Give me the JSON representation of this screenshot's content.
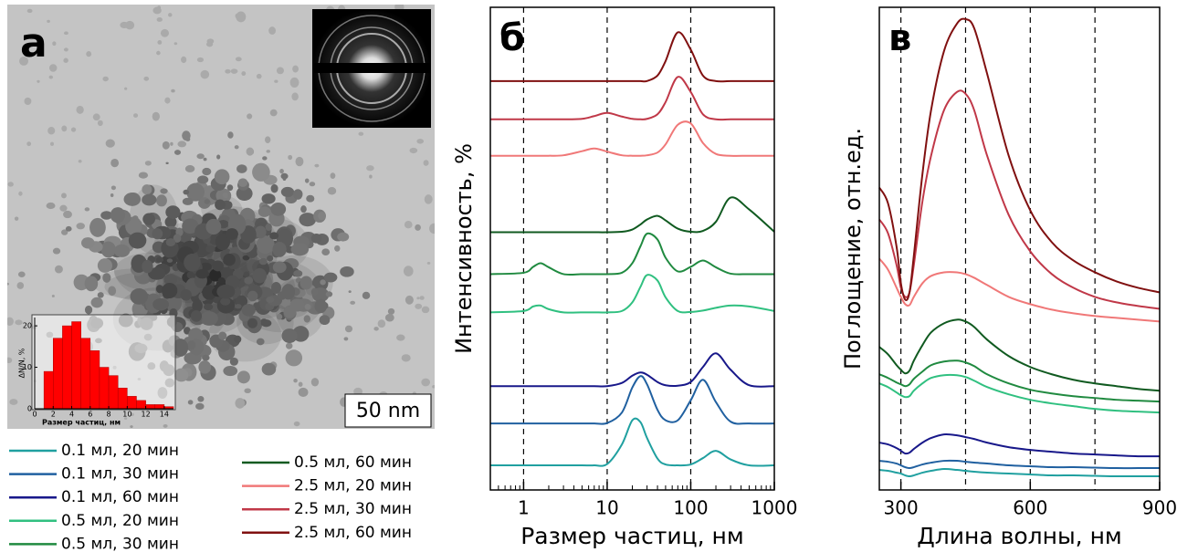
{
  "image": {
    "label": "а",
    "scale_bar": "50 nm"
  },
  "chart_data": [
    {
      "type": "histogram",
      "xlabel": "Размер частиц, нм",
      "ylabel": "ΔN/N, %",
      "bins": [
        1,
        2,
        3,
        4,
        5,
        6,
        7,
        8,
        9,
        10,
        11,
        12,
        13,
        14,
        15
      ],
      "values": [
        9,
        17,
        20,
        21,
        17,
        14,
        10,
        8,
        5,
        3,
        2,
        1,
        1,
        0.5
      ],
      "color": "#ff0000",
      "xlim": [
        0,
        15
      ],
      "ylim": [
        0,
        22
      ],
      "xticks": [
        0,
        2,
        4,
        6,
        8,
        10,
        12,
        14
      ],
      "yticks": [
        0,
        10,
        20
      ]
    },
    {
      "type": "line",
      "title": "б",
      "xlabel": "Размер частиц, нм",
      "ylabel": "Интенсивность, %",
      "log_x": true,
      "xlim": [
        0.4,
        1000
      ],
      "ylim": [
        0,
        106
      ],
      "xticks": [
        1,
        10,
        100,
        1000
      ],
      "reference_lines": [
        1,
        10,
        100
      ],
      "x": [
        0.4,
        1,
        1.3,
        1.6,
        2,
        3,
        5,
        7,
        10,
        15,
        20,
        25,
        30,
        40,
        50,
        70,
        100,
        140,
        200,
        300,
        500,
        1000
      ],
      "series": [
        {
          "name": "0.1 мл, 20 мин",
          "color": "#20a0a0",
          "values": [
            5.4,
            5.4,
            5.4,
            5.4,
            5.4,
            5.4,
            5.4,
            5.4,
            5.7,
            10.0,
            15.3,
            14.9,
            11.4,
            6.9,
            5.6,
            5.4,
            5.6,
            7.0,
            8.6,
            6.7,
            5.4,
            5.4
          ]
        },
        {
          "name": "0.1 мл, 30 мин",
          "color": "#2060a0",
          "values": [
            14.6,
            14.6,
            14.6,
            14.6,
            14.6,
            14.6,
            14.6,
            14.6,
            14.7,
            17.0,
            22.5,
            25.0,
            23.2,
            17.6,
            15.3,
            15.3,
            19.7,
            24.2,
            19.3,
            15.0,
            14.6,
            14.6
          ]
        },
        {
          "name": "0.1 мл, 60 мин",
          "color": "#18188a",
          "values": [
            22.8,
            22.8,
            22.8,
            22.8,
            22.8,
            22.8,
            22.8,
            22.8,
            22.8,
            23.5,
            25.1,
            25.8,
            25.3,
            23.7,
            23.0,
            22.9,
            23.7,
            27.0,
            30.0,
            26.4,
            23.0,
            22.8
          ]
        },
        {
          "name": "0.5 мл, 20 мин",
          "color": "#30c080",
          "values": [
            39.0,
            39.3,
            40.3,
            40.5,
            39.7,
            39.0,
            39.0,
            39.0,
            39.0,
            39.3,
            41.2,
            44.6,
            47.2,
            46.0,
            42.3,
            39.3,
            39.1,
            39.4,
            40.0,
            40.5,
            40.3,
            39.3
          ]
        },
        {
          "name": "0.5 мл, 30 мин",
          "color": "#208a40",
          "values": [
            47.4,
            47.7,
            49.0,
            49.8,
            48.9,
            47.4,
            47.4,
            47.4,
            47.4,
            47.7,
            49.8,
            53.5,
            56.3,
            55.0,
            51.0,
            48.0,
            49.0,
            50.4,
            48.9,
            47.5,
            47.4,
            47.4
          ]
        },
        {
          "name": "0.5 мл, 60 мин",
          "color": "#105a20",
          "values": [
            56.6,
            56.6,
            56.6,
            56.6,
            56.6,
            56.6,
            56.6,
            56.6,
            56.6,
            56.7,
            57.2,
            58.3,
            59.4,
            60.2,
            59.2,
            57.4,
            56.7,
            56.9,
            58.9,
            64.2,
            61.6,
            56.7
          ]
        },
        {
          "name": "2.5 мл, 20 мин",
          "color": "#f07878",
          "values": [
            73.4,
            73.4,
            73.4,
            73.4,
            73.4,
            73.5,
            74.4,
            75.0,
            74.3,
            73.5,
            73.4,
            73.4,
            73.5,
            74.1,
            75.9,
            80.2,
            80.5,
            76.2,
            73.8,
            73.4,
            73.4,
            73.4
          ]
        },
        {
          "name": "2.5 мл, 30 мин",
          "color": "#c03848",
          "values": [
            81.4,
            81.4,
            81.4,
            81.4,
            81.4,
            81.4,
            81.5,
            82.1,
            82.8,
            82.0,
            81.5,
            81.4,
            81.5,
            82.5,
            85.2,
            90.7,
            87.4,
            82.5,
            81.4,
            81.4,
            81.4,
            81.4
          ]
        },
        {
          "name": "2.5 мл, 60 мин",
          "color": "#801010",
          "values": [
            89.8,
            89.8,
            89.8,
            89.8,
            89.8,
            89.8,
            89.8,
            89.8,
            89.8,
            89.8,
            89.8,
            89.8,
            89.8,
            91.0,
            94.2,
            100.5,
            96.7,
            91.0,
            89.8,
            89.8,
            89.8,
            89.8
          ]
        }
      ]
    },
    {
      "type": "line",
      "title": "в",
      "xlabel": "Длина волны, нм",
      "ylabel": "Поглощение, отн.ед.",
      "xlim": [
        250,
        900
      ],
      "ylim": [
        0,
        106
      ],
      "xticks": [
        300,
        600,
        900
      ],
      "reference_lines": [
        300,
        450,
        600,
        750
      ],
      "x": [
        250,
        270,
        290,
        300,
        310,
        320,
        330,
        350,
        370,
        400,
        430,
        450,
        470,
        500,
        550,
        600,
        650,
        700,
        750,
        800,
        850,
        900
      ],
      "series": [
        {
          "color": "#20a0a0",
          "values": [
            4.4,
            4.2,
            3.8,
            3.6,
            3.2,
            3.0,
            3.2,
            3.8,
            4.2,
            4.6,
            4.4,
            4.2,
            4.0,
            3.8,
            3.6,
            3.4,
            3.2,
            3.2,
            3.1,
            3.0,
            3.0,
            3.0
          ]
        },
        {
          "color": "#2060a0",
          "values": [
            6.4,
            6.2,
            5.8,
            5.4,
            5.0,
            4.8,
            5.0,
            5.6,
            6.0,
            6.4,
            6.4,
            6.2,
            6.0,
            5.8,
            5.4,
            5.2,
            5.0,
            5.0,
            4.9,
            4.8,
            4.8,
            4.8
          ]
        },
        {
          "color": "#18188a",
          "values": [
            10.4,
            10.0,
            9.2,
            8.6,
            8.0,
            8.2,
            9.0,
            10.4,
            11.4,
            12.2,
            12.0,
            11.6,
            11.2,
            10.4,
            9.4,
            8.8,
            8.4,
            8.0,
            7.8,
            7.6,
            7.4,
            7.4
          ]
        },
        {
          "color": "#30c080",
          "values": [
            23.4,
            22.6,
            21.4,
            20.8,
            20.4,
            20.6,
            21.8,
            23.4,
            24.6,
            25.2,
            25.2,
            24.8,
            24.0,
            22.6,
            21.0,
            19.8,
            19.0,
            18.4,
            17.8,
            17.4,
            17.2,
            17.0
          ]
        },
        {
          "color": "#208a40",
          "values": [
            25.4,
            24.6,
            23.6,
            23.2,
            22.8,
            23.2,
            24.4,
            26.0,
            27.4,
            28.2,
            28.4,
            28.0,
            27.2,
            25.4,
            23.4,
            22.0,
            21.2,
            20.6,
            20.2,
            19.8,
            19.6,
            19.4
          ]
        },
        {
          "color": "#105a20",
          "values": [
            31.4,
            29.8,
            27.4,
            26.4,
            25.6,
            26.2,
            28.4,
            31.8,
            34.6,
            36.6,
            37.4,
            37.0,
            35.8,
            33.0,
            29.4,
            27.0,
            25.4,
            24.2,
            23.4,
            22.8,
            22.2,
            21.8
          ]
        },
        {
          "color": "#f07878",
          "values": [
            50.8,
            48.4,
            44.4,
            42.4,
            40.8,
            40.6,
            42.4,
            45.4,
            47.0,
            47.8,
            47.8,
            47.4,
            46.6,
            45.0,
            42.4,
            40.8,
            39.6,
            38.8,
            38.2,
            37.8,
            37.4,
            37.0
          ]
        },
        {
          "color": "#c03848",
          "values": [
            59.4,
            56.4,
            49.4,
            44.4,
            42.4,
            43.4,
            49.4,
            63.4,
            73.4,
            83.4,
            87.4,
            87.0,
            83.4,
            73.4,
            60.4,
            52.4,
            47.4,
            44.4,
            42.4,
            41.2,
            40.4,
            39.8
          ]
        },
        {
          "color": "#801010",
          "values": [
            66.4,
            63.0,
            53.4,
            45.4,
            41.8,
            43.4,
            51.4,
            69.4,
            83.4,
            96.4,
            102.4,
            103.4,
            101.4,
            91.4,
            73.4,
            61.4,
            54.4,
            50.4,
            47.8,
            45.8,
            44.4,
            43.4
          ]
        }
      ]
    }
  ]
}
